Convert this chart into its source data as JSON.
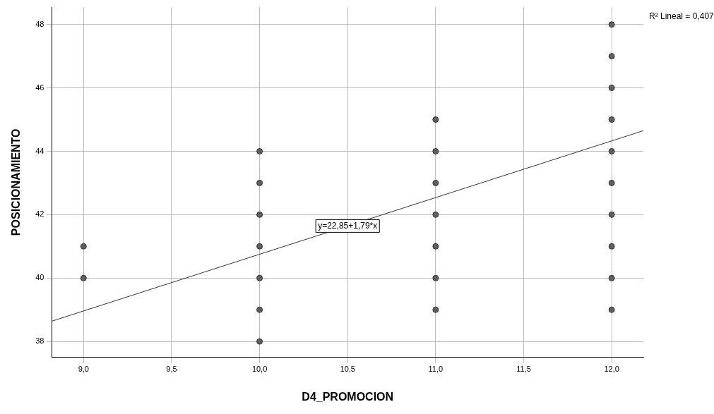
{
  "chart_data": {
    "type": "scatter",
    "xlabel": "D4_PROMOCION",
    "ylabel": "POSICIONAMIENTO",
    "xlim": [
      8.82,
      12.18
    ],
    "ylim": [
      37.5,
      48.55
    ],
    "xticks": [
      {
        "value": 9,
        "label": "9,0"
      },
      {
        "value": 9.5,
        "label": "9,5"
      },
      {
        "value": 10,
        "label": "10,0"
      },
      {
        "value": 10.5,
        "label": "10,5"
      },
      {
        "value": 11,
        "label": "11,0"
      },
      {
        "value": 11.5,
        "label": "11,5"
      },
      {
        "value": 12,
        "label": "12,0"
      }
    ],
    "yticks": [
      38,
      40,
      42,
      44,
      46,
      48
    ],
    "grid": true,
    "legend": false,
    "marker": "circle",
    "series": [
      {
        "color": "#5f5f5f",
        "x": [
          9,
          9,
          10,
          10,
          10,
          10,
          10,
          10,
          10,
          11,
          11,
          11,
          11,
          11,
          11,
          11,
          12,
          12,
          12,
          12,
          12,
          12,
          12,
          12,
          12,
          12
        ],
        "values": [
          40,
          41,
          38,
          39,
          40,
          41,
          42,
          43,
          44,
          39,
          40,
          41,
          42,
          43,
          44,
          45,
          39,
          40,
          41,
          42,
          43,
          44,
          45,
          46,
          47,
          48
        ]
      },
      {
        "type": "line",
        "color": "#333333",
        "marker": "none",
        "x": [
          8.82,
          12.18
        ],
        "values": [
          38.64,
          44.65
        ]
      }
    ],
    "annotations": [
      "R² Lineal = 0,407",
      "y=22,85+1,79*x"
    ]
  }
}
